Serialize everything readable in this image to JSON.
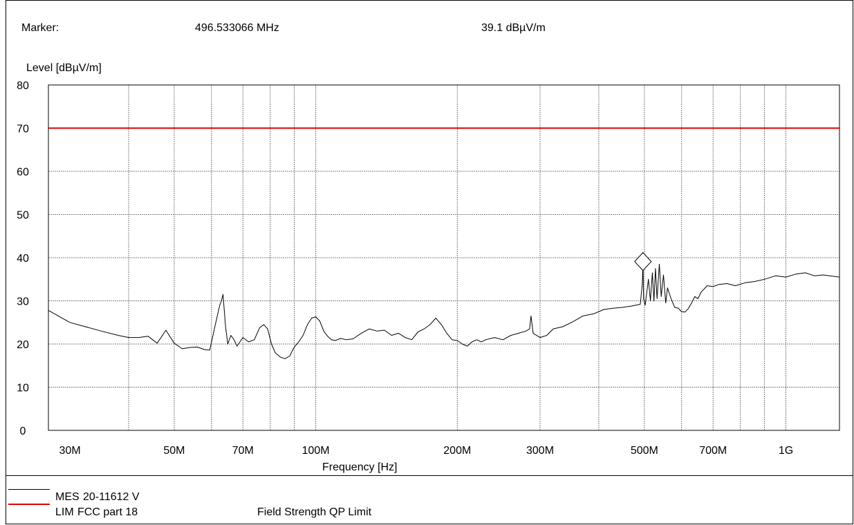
{
  "header": {
    "marker_label": "Marker:",
    "marker_freq": "496.533066 MHz",
    "marker_level": "39.1 dBµV/m"
  },
  "colors": {
    "measurement": "#000000",
    "limit": "#e00000",
    "grid": "#808080"
  },
  "legend": [
    {
      "code": "MES",
      "name": "20-11612 V",
      "desc": ""
    },
    {
      "code": "LIM",
      "name": "FCC part 18",
      "desc": "Field Strength QP Limit"
    }
  ],
  "chart_data": {
    "type": "line",
    "xlabel": "Frequency [Hz]",
    "ylabel": "Level [dBµV/m]",
    "xscale": "log",
    "xlim": [
      27,
      1300
    ],
    "ylim": [
      0,
      80
    ],
    "x_ticks": [
      {
        "value": 30,
        "label": "30M"
      },
      {
        "value": 50,
        "label": "50M"
      },
      {
        "value": 70,
        "label": "70M"
      },
      {
        "value": 100,
        "label": "100M"
      },
      {
        "value": 200,
        "label": "200M"
      },
      {
        "value": 300,
        "label": "300M"
      },
      {
        "value": 500,
        "label": "500M"
      },
      {
        "value": 700,
        "label": "700M"
      },
      {
        "value": 1000,
        "label": "1G"
      }
    ],
    "x_grid": [
      40,
      50,
      60,
      70,
      80,
      90,
      100,
      200,
      300,
      400,
      500,
      600,
      700,
      800,
      900,
      1000
    ],
    "y_ticks": [
      0,
      10,
      20,
      30,
      40,
      50,
      60,
      70,
      80
    ],
    "grid": true,
    "marker": {
      "x": 496.533066,
      "y": 39.1
    },
    "series": [
      {
        "name": "MES",
        "x": [
          27,
          30,
          35,
          38,
          40,
          42,
          44,
          46,
          48,
          50,
          52,
          54,
          56,
          58,
          59.5,
          61,
          62.5,
          63,
          63.5,
          64.3,
          65,
          66,
          67,
          68,
          70,
          72,
          74,
          76,
          77.5,
          79,
          80.5,
          82,
          84,
          86,
          88,
          90,
          92,
          94,
          96,
          98,
          100,
          102,
          104,
          106,
          108,
          110,
          113,
          116,
          120,
          125,
          130,
          135,
          140,
          145,
          150,
          155,
          160,
          165,
          170,
          175,
          180,
          185,
          190,
          195,
          200,
          205,
          210,
          215,
          220,
          225,
          230,
          240,
          250,
          260,
          270,
          280,
          285,
          287,
          290,
          300,
          310,
          320,
          335,
          350,
          370,
          390,
          410,
          430,
          450,
          470,
          490,
          495,
          496.5,
          498,
          502,
          510,
          515,
          520,
          524,
          528,
          532,
          538,
          543,
          549,
          555,
          560,
          570,
          580,
          590,
          600,
          610,
          620,
          630,
          640,
          650,
          660,
          680,
          700,
          720,
          750,
          780,
          820,
          860,
          900,
          950,
          1000,
          1050,
          1100,
          1150,
          1200,
          1300
        ],
        "y": [
          27.8,
          25,
          23,
          22,
          21.5,
          21.5,
          21.8,
          20.2,
          23.2,
          20.2,
          18.9,
          19.2,
          19.3,
          18.7,
          18.6,
          24,
          29,
          30,
          31.5,
          24,
          20,
          22,
          21,
          19.5,
          21.5,
          20.5,
          21,
          23.8,
          24.5,
          23.5,
          20,
          18,
          17,
          16.6,
          17.2,
          19.3,
          20.5,
          22,
          24.5,
          26,
          26.3,
          25.3,
          23,
          21.8,
          21,
          20.8,
          21.3,
          21,
          21.2,
          22.5,
          23.5,
          23,
          23.2,
          22,
          22.5,
          21.5,
          21,
          22.8,
          23.5,
          24.5,
          26,
          24.5,
          22.5,
          21,
          20.8,
          20,
          19.5,
          20.5,
          21,
          20.5,
          21,
          21.5,
          21,
          22,
          22.5,
          23,
          23.5,
          26.5,
          22.5,
          21.5,
          22,
          23.5,
          24,
          25,
          26.5,
          27,
          28,
          28.3,
          28.5,
          28.8,
          29.2,
          34,
          39.1,
          30.5,
          29,
          35,
          30,
          36.5,
          30,
          37.5,
          30.5,
          38.5,
          31,
          36,
          29.5,
          33,
          30.5,
          28.5,
          28.3,
          27.5,
          27.4,
          28.2,
          29.5,
          31,
          30.5,
          32,
          33.5,
          33.3,
          33.8,
          34,
          33.5,
          34.2,
          34.5,
          35,
          35.8,
          35.5,
          36.2,
          36.5,
          35.8,
          36,
          35.5
        ]
      },
      {
        "name": "LIM",
        "x": [
          27,
          1300
        ],
        "y": [
          70,
          70
        ]
      }
    ]
  }
}
